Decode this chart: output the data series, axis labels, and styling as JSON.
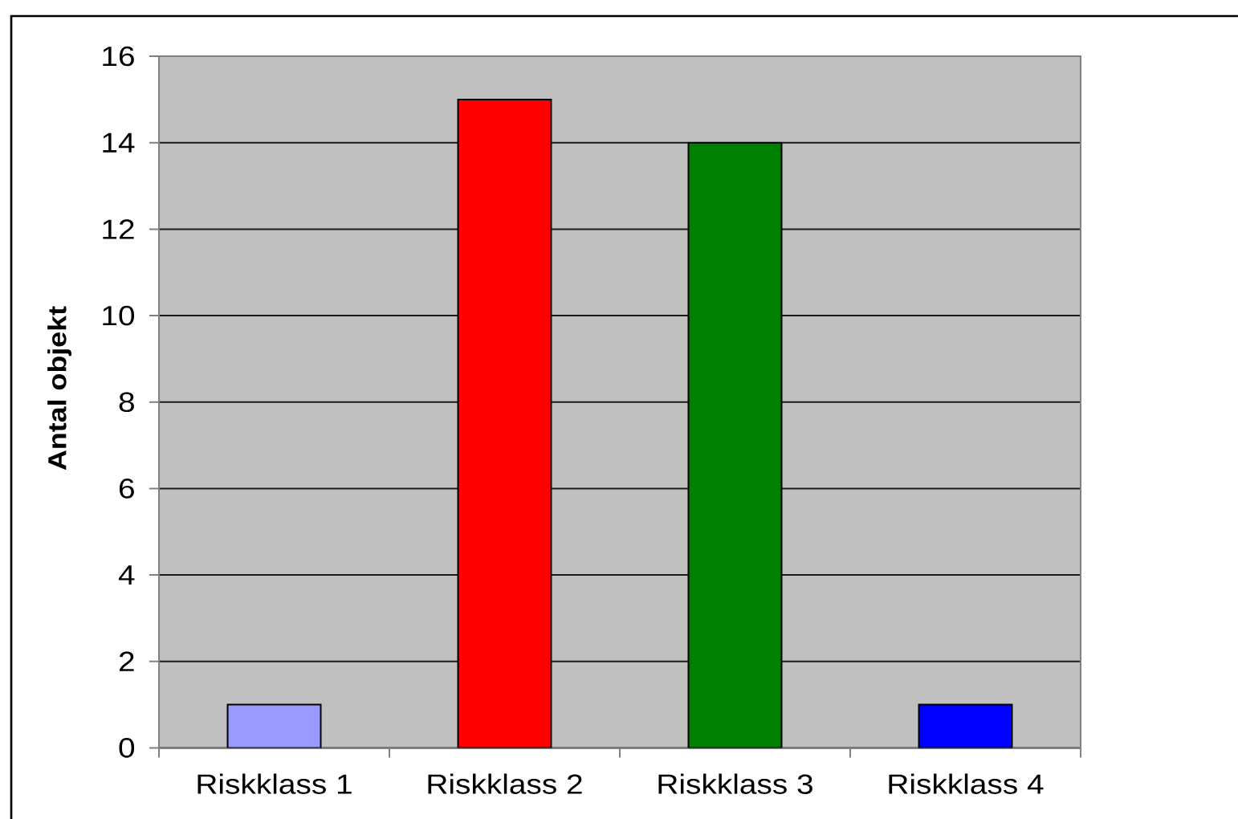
{
  "chart_data": {
    "type": "bar",
    "ylabel": "Antal objekt",
    "categories": [
      "Riskklass 1",
      "Riskklass 2",
      "Riskklass 3",
      "Riskklass 4"
    ],
    "values": [
      1,
      15,
      14,
      1
    ],
    "colors": [
      "#9999ff",
      "#ff0000",
      "#008000",
      "#0000ff"
    ],
    "ylim": [
      0,
      16
    ],
    "yticks": [
      0,
      2,
      4,
      6,
      8,
      10,
      12,
      14,
      16
    ],
    "grid": "y"
  }
}
